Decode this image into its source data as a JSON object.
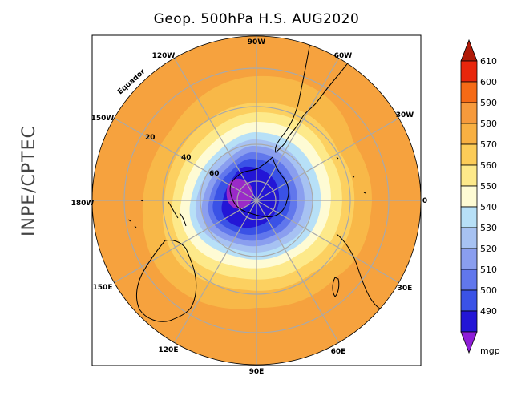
{
  "title": "Geop. 500hPa H.S. AUG2020",
  "credit": "INPE/CPTEC",
  "longitude_labels": {
    "lon_90w": "90W",
    "lon_120w": "120W",
    "lon_60w": "60W",
    "lon_150w": "150W",
    "lon_30w": "30W",
    "lon_180w": "180W",
    "lon_0": "0",
    "lon_150e": "150E",
    "lon_30e": "30E",
    "lon_120e": "120E",
    "lon_60e": "60E",
    "lon_90e": "90E"
  },
  "latitude_labels": {
    "equator": "Equador",
    "lat20": "20",
    "lat40": "40",
    "lat60": "60"
  },
  "colorbar": {
    "unit": "mgp",
    "levels": [
      "610",
      "600",
      "590",
      "580",
      "570",
      "560",
      "550",
      "540",
      "530",
      "520",
      "510",
      "500",
      "490"
    ],
    "colors": [
      "#e8260c",
      "#f56a16",
      "#f69a3c",
      "#f8b042",
      "#fccc58",
      "#fde98a",
      "#fefbd4",
      "#b7e0f7",
      "#a7c2f2",
      "#8a9eef",
      "#6177ec",
      "#3a52e6",
      "#2316d6"
    ],
    "top_color": "#b01a08",
    "bottom_color": "#8e1ed8"
  },
  "map": {
    "field_colors": {
      "band_580_590": "#f6a23e",
      "band_570_580": "#f8b848",
      "band_560_570": "#fcd060",
      "band_550_560": "#fde98a",
      "band_540_550": "#fefbd4",
      "band_530_540": "#b7e0f7",
      "band_520_530": "#a7c2f2",
      "band_510_520": "#8a9eef",
      "band_500_510": "#6177ec",
      "band_490_500": "#3a52e6",
      "band_480_490": "#2316d6",
      "band_below_480": "#9a2ac8"
    }
  }
}
